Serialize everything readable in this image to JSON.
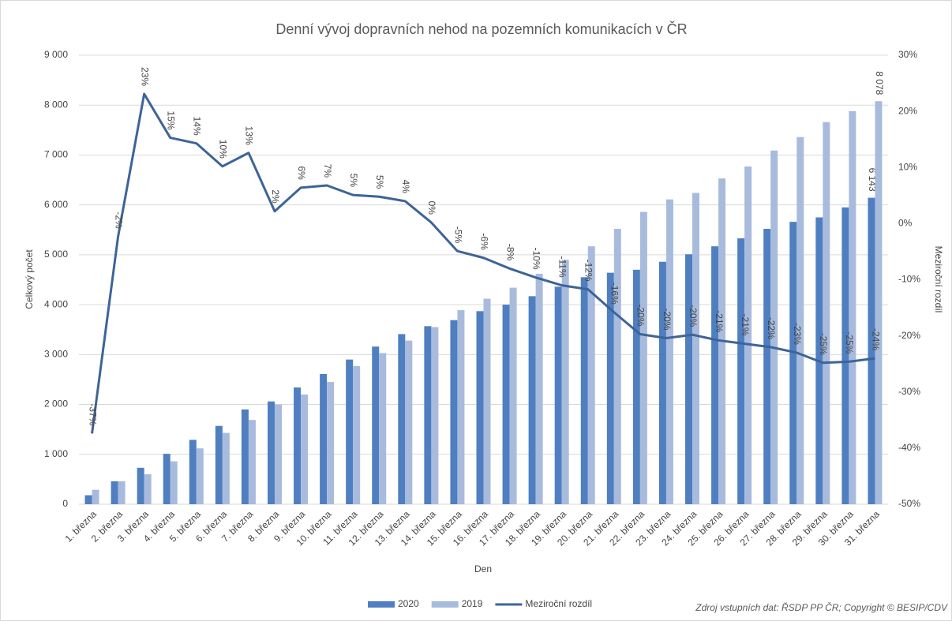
{
  "chart_data": {
    "type": "bar",
    "title": "Denní vývoj dopravních nehod na pozemních komunikacích v ČR",
    "xlabel": "Den",
    "ylabel": "Celkový počet",
    "y2label": "Meziroční rozdíl",
    "source": "Zdroj vstupních dat: ŘSDP PP ČR; Copyright © BESIP/CDV",
    "legend": "bottom",
    "grid": true,
    "categories": [
      "1. března",
      "2. března",
      "3. března",
      "4. března",
      "5. března",
      "6. března",
      "7. března",
      "8. března",
      "9. března",
      "10. března",
      "11. března",
      "12. března",
      "13. března",
      "14. března",
      "15. března",
      "16. března",
      "17. března",
      "18. března",
      "19. března",
      "20. března",
      "21. března",
      "22. března",
      "23. března",
      "24. března",
      "25. března",
      "26. března",
      "27. března",
      "28. března",
      "29. března",
      "30. března",
      "31. března"
    ],
    "series": [
      {
        "name": "2020",
        "type": "bar",
        "color": "#4f7fc0",
        "values": [
          180,
          460,
          730,
          1010,
          1290,
          1570,
          1900,
          2060,
          2340,
          2610,
          2900,
          3160,
          3410,
          3570,
          3690,
          3870,
          4000,
          4170,
          4360,
          4550,
          4640,
          4700,
          4860,
          5010,
          5170,
          5330,
          5520,
          5660,
          5750,
          5950,
          6143
        ],
        "value_labels": [
          null,
          null,
          null,
          null,
          null,
          null,
          null,
          null,
          null,
          null,
          null,
          null,
          null,
          null,
          null,
          null,
          null,
          null,
          null,
          null,
          null,
          null,
          null,
          null,
          null,
          null,
          null,
          null,
          null,
          null,
          "6 143"
        ]
      },
      {
        "name": "2019",
        "type": "bar",
        "color": "#a9bbdd",
        "values": [
          290,
          460,
          600,
          860,
          1120,
          1430,
          1690,
          2000,
          2200,
          2450,
          2770,
          3030,
          3280,
          3550,
          3890,
          4120,
          4340,
          4620,
          4900,
          5170,
          5520,
          5860,
          6110,
          6240,
          6530,
          6770,
          7090,
          7360,
          7660,
          7880,
          8078
        ],
        "value_labels": [
          null,
          null,
          null,
          null,
          null,
          null,
          null,
          null,
          null,
          null,
          null,
          null,
          null,
          null,
          null,
          null,
          null,
          null,
          null,
          null,
          null,
          null,
          null,
          null,
          null,
          null,
          null,
          null,
          null,
          null,
          "8 078"
        ]
      },
      {
        "name": "Meziroční rozdíl",
        "type": "line",
        "axis": "y2",
        "color": "#3e6497",
        "values": [
          -37.4,
          -2.3,
          23.1,
          15.3,
          14.3,
          10.2,
          12.6,
          2.2,
          6.4,
          6.8,
          5.1,
          4.8,
          4.0,
          0.2,
          -4.9,
          -6.1,
          -8.0,
          -9.6,
          -11.0,
          -11.7,
          -15.8,
          -19.7,
          -20.4,
          -19.8,
          -20.8,
          -21.4,
          -22.0,
          -23.0,
          -24.8,
          -24.6,
          -24.0
        ],
        "value_labels": [
          "-37%",
          "-2%",
          "23%",
          "15%",
          "14%",
          "10%",
          "13%",
          "2%",
          "6%",
          "7%",
          "5%",
          "5%",
          "4%",
          "0%",
          "-5%",
          "-6%",
          "-8%",
          "-10%",
          "-11%",
          "-12%",
          "-16%",
          "-20%",
          "-20%",
          "-20%",
          "-21%",
          "-21%",
          "-22%",
          "-23%",
          "-25%",
          "-25%",
          "-24%"
        ]
      }
    ],
    "ylim": [
      0,
      9000
    ],
    "yticks": [
      0,
      {
        "value": 1000,
        "label": "1 000"
      },
      {
        "value": 2000,
        "label": "2 000"
      },
      {
        "value": 3000,
        "label": "3 000"
      },
      {
        "value": 4000,
        "label": "4 000"
      },
      {
        "value": 5000,
        "label": "5 000"
      },
      {
        "value": 6000,
        "label": "6 000"
      },
      {
        "value": 7000,
        "label": "7 000"
      },
      {
        "value": 8000,
        "label": "8 000"
      },
      {
        "value": 9000,
        "label": "9 000"
      }
    ],
    "y2lim": [
      -50,
      30
    ],
    "y2ticks": [
      {
        "value": -50,
        "label": "-50%"
      },
      {
        "value": -40,
        "label": "-40%"
      },
      {
        "value": -30,
        "label": "-30%"
      },
      {
        "value": -20,
        "label": "-20%"
      },
      {
        "value": -10,
        "label": "-10%"
      },
      {
        "value": 0,
        "label": "0%"
      },
      {
        "value": 10,
        "label": "10%"
      },
      {
        "value": 20,
        "label": "20%"
      },
      {
        "value": 30,
        "label": "30%"
      }
    ]
  }
}
